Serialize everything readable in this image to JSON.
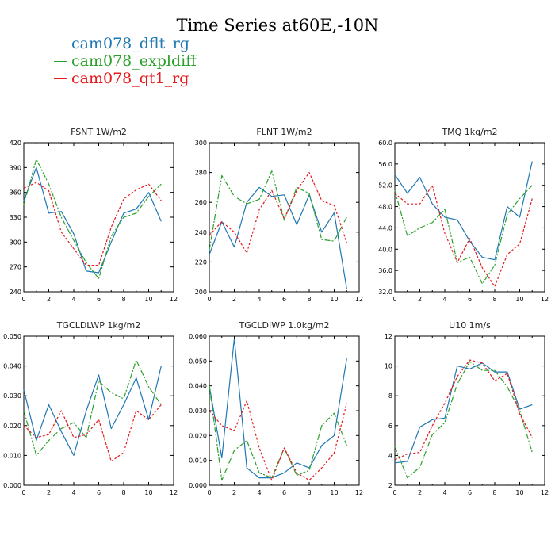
{
  "title": "Time Series at60E,-10N",
  "legend": [
    {
      "label": "cam078_dflt_rg",
      "color": "#1f77b4"
    },
    {
      "label": "cam078_expldiff",
      "color": "#2ca02c"
    },
    {
      "label": "cam078_qt1_rg",
      "color": "#e41a1c"
    }
  ],
  "chart_data": [
    {
      "type": "line",
      "title": "FSNT   1W/m2",
      "x": [
        0,
        1,
        2,
        3,
        4,
        5,
        6,
        7,
        8,
        9,
        10,
        11
      ],
      "xlim": [
        0,
        12
      ],
      "xticks": [
        "0",
        "2",
        "4",
        "6",
        "8",
        "10",
        "12"
      ],
      "ylim": [
        240,
        420
      ],
      "yticks": [
        "240",
        "270",
        "300",
        "330",
        "360",
        "390",
        "420"
      ],
      "series": [
        {
          "name": "cam078_dflt_rg",
          "values": [
            350,
            390,
            335,
            337,
            310,
            265,
            263,
            300,
            335,
            340,
            360,
            325
          ]
        },
        {
          "name": "cam078_expldiff",
          "values": [
            345,
            400,
            370,
            330,
            302,
            275,
            256,
            307,
            330,
            335,
            355,
            370
          ]
        },
        {
          "name": "cam078_qt1_rg",
          "values": [
            365,
            372,
            362,
            312,
            292,
            272,
            272,
            318,
            352,
            363,
            370,
            350
          ]
        }
      ]
    },
    {
      "type": "line",
      "title": "FLNT   1W/m2",
      "x": [
        0,
        1,
        2,
        3,
        4,
        5,
        6,
        7,
        8,
        9,
        10,
        11
      ],
      "xlim": [
        0,
        12
      ],
      "xticks": [
        "0",
        "2",
        "4",
        "6",
        "8",
        "10",
        "12"
      ],
      "ylim": [
        200,
        300
      ],
      "yticks": [
        "200",
        "220",
        "240",
        "260",
        "280",
        "300"
      ],
      "series": [
        {
          "name": "cam078_dflt_rg",
          "values": [
            225,
            247,
            230,
            260,
            270,
            264,
            265,
            245,
            265,
            240,
            253,
            202
          ]
        },
        {
          "name": "cam078_expldiff",
          "values": [
            228,
            278,
            264,
            259,
            262,
            281,
            248,
            270,
            266,
            235,
            234,
            250
          ]
        },
        {
          "name": "cam078_qt1_rg",
          "values": [
            238,
            247,
            240,
            226,
            255,
            268,
            249,
            268,
            280,
            261,
            258,
            233
          ]
        }
      ]
    },
    {
      "type": "line",
      "title": "TMQ   1kg/m2",
      "x": [
        0,
        1,
        2,
        3,
        4,
        5,
        6,
        7,
        8,
        9,
        10,
        11
      ],
      "xlim": [
        0,
        12
      ],
      "xticks": [
        "0",
        "2",
        "4",
        "6",
        "8",
        "10",
        "12"
      ],
      "ylim": [
        32.0,
        60.0
      ],
      "yticks": [
        "32.0",
        "36.0",
        "40.0",
        "44.0",
        "48.0",
        "52.0",
        "56.0",
        "60.0"
      ],
      "series": [
        {
          "name": "cam078_dflt_rg",
          "values": [
            54.0,
            50.5,
            53.5,
            48.5,
            46.0,
            45.5,
            41.5,
            38.5,
            38.0,
            48.0,
            46.0,
            56.5
          ]
        },
        {
          "name": "cam078_expldiff",
          "values": [
            51.0,
            42.5,
            44.0,
            45.0,
            47.5,
            37.5,
            38.5,
            33.5,
            37.0,
            46.5,
            49.5,
            52.0
          ]
        },
        {
          "name": "cam078_qt1_rg",
          "values": [
            50.5,
            48.5,
            48.5,
            52.0,
            43.0,
            37.5,
            42.0,
            36.5,
            33.0,
            39.0,
            41.0,
            49.5
          ]
        }
      ]
    },
    {
      "type": "line",
      "title": "TGCLDLWP   1kg/m2",
      "x": [
        0,
        1,
        2,
        3,
        4,
        5,
        6,
        7,
        8,
        9,
        10,
        11
      ],
      "xlim": [
        0,
        12
      ],
      "xticks": [
        "0",
        "2",
        "4",
        "6",
        "8",
        "10",
        "12"
      ],
      "ylim": [
        0.0,
        0.05
      ],
      "yticks": [
        "0.000",
        "0.010",
        "0.020",
        "0.030",
        "0.040",
        "0.050"
      ],
      "series": [
        {
          "name": "cam078_dflt_rg",
          "values": [
            0.032,
            0.015,
            0.027,
            0.018,
            0.01,
            0.025,
            0.037,
            0.019,
            0.027,
            0.036,
            0.022,
            0.04
          ]
        },
        {
          "name": "cam078_expldiff",
          "values": [
            0.025,
            0.01,
            0.015,
            0.019,
            0.021,
            0.016,
            0.035,
            0.031,
            0.029,
            0.042,
            0.033,
            0.027
          ]
        },
        {
          "name": "cam078_qt1_rg",
          "values": [
            0.02,
            0.016,
            0.017,
            0.025,
            0.016,
            0.017,
            0.022,
            0.008,
            0.011,
            0.025,
            0.022,
            0.027
          ]
        }
      ]
    },
    {
      "type": "line",
      "title": "TGCLDIWP   1.0kg/m2",
      "x": [
        0,
        1,
        2,
        3,
        4,
        5,
        6,
        7,
        8,
        9,
        10,
        11
      ],
      "xlim": [
        0,
        12
      ],
      "xticks": [
        "0",
        "2",
        "4",
        "6",
        "8",
        "10",
        "12"
      ],
      "ylim": [
        0.0,
        0.06
      ],
      "yticks": [
        "0.000",
        "0.010",
        "0.020",
        "0.030",
        "0.040",
        "0.050",
        "0.060"
      ],
      "series": [
        {
          "name": "cam078_dflt_rg",
          "values": [
            0.04,
            0.011,
            0.059,
            0.007,
            0.003,
            0.003,
            0.005,
            0.009,
            0.007,
            0.016,
            0.02,
            0.051
          ]
        },
        {
          "name": "cam078_expldiff",
          "values": [
            0.04,
            0.002,
            0.014,
            0.018,
            0.005,
            0.003,
            0.015,
            0.004,
            0.006,
            0.024,
            0.029,
            0.016
          ]
        },
        {
          "name": "cam078_qt1_rg",
          "values": [
            0.03,
            0.024,
            0.022,
            0.034,
            0.015,
            0.002,
            0.015,
            0.005,
            0.002,
            0.007,
            0.013,
            0.033
          ]
        }
      ]
    },
    {
      "type": "line",
      "title": "U10   1m/s",
      "x": [
        0,
        1,
        2,
        3,
        4,
        5,
        6,
        7,
        8,
        9,
        10,
        11
      ],
      "xlim": [
        0,
        12
      ],
      "xticks": [
        "0",
        "2",
        "4",
        "6",
        "8",
        "10",
        "12"
      ],
      "ylim": [
        2,
        12
      ],
      "yticks": [
        "2",
        "4",
        "6",
        "8",
        "10",
        "12"
      ],
      "series": [
        {
          "name": "cam078_dflt_rg",
          "values": [
            3.5,
            3.6,
            5.9,
            6.4,
            6.5,
            10.0,
            9.8,
            10.2,
            9.6,
            9.6,
            7.1,
            7.4
          ]
        },
        {
          "name": "cam078_expldiff",
          "values": [
            4.6,
            2.5,
            3.2,
            5.4,
            6.2,
            8.8,
            10.3,
            9.7,
            9.7,
            8.6,
            7.0,
            4.2
          ]
        },
        {
          "name": "cam078_qt1_rg",
          "values": [
            3.7,
            4.1,
            4.2,
            6.0,
            7.5,
            9.3,
            10.4,
            10.2,
            9.0,
            9.5,
            6.8,
            5.2
          ]
        }
      ]
    }
  ]
}
